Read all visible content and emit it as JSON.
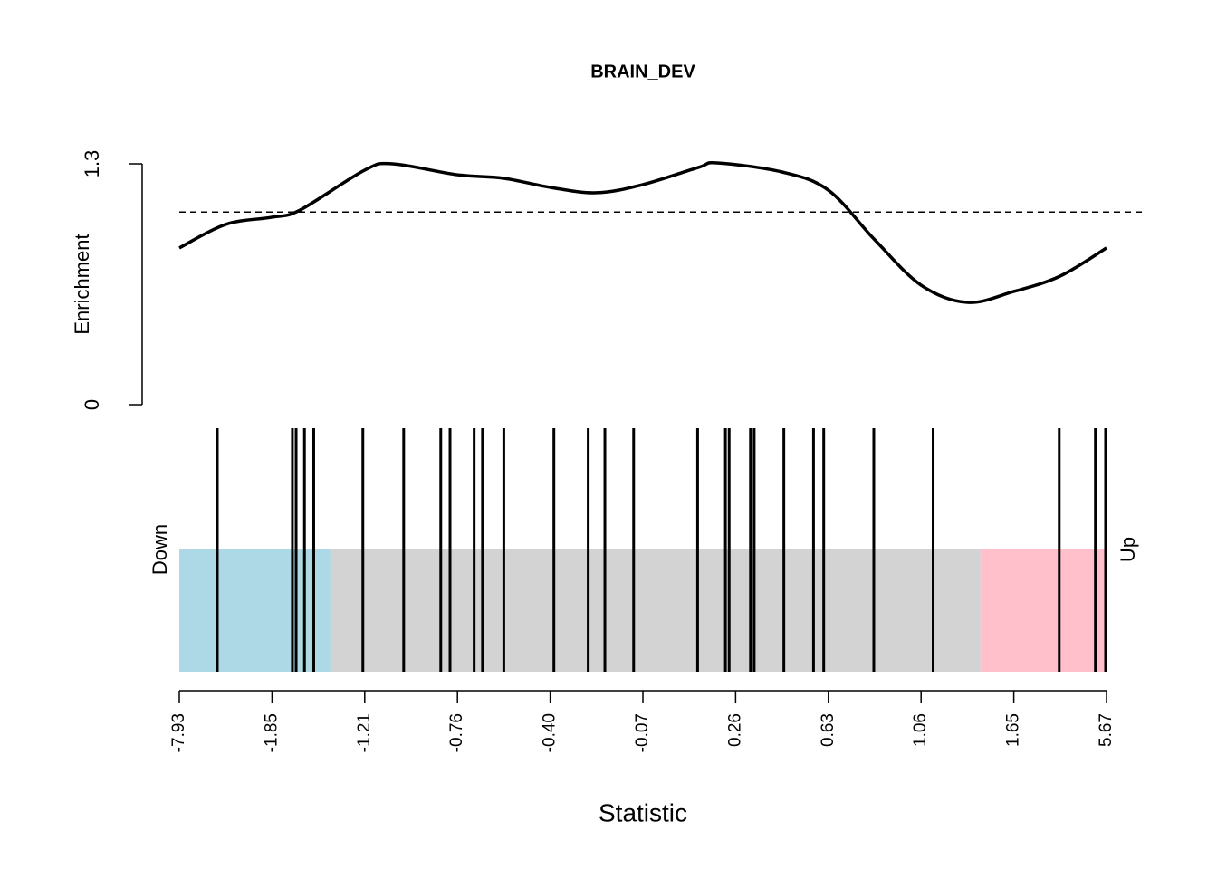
{
  "chart_data": {
    "type": "barcode",
    "title": "BRAIN_DEV",
    "ylabel": "Enrichment",
    "xlabel": "Statistic",
    "down_label": "Down",
    "up_label": "Up",
    "ylim": [
      0,
      1.3
    ],
    "yticks": [
      0,
      1.3
    ],
    "xlim": [
      0,
      1
    ],
    "xticks": [
      {
        "value": 0,
        "label": "-7.93"
      },
      {
        "value": 0.1,
        "label": "-1.85"
      },
      {
        "value": 0.2,
        "label": "-1.21"
      },
      {
        "value": 0.3,
        "label": "-0.76"
      },
      {
        "value": 0.4,
        "label": "-0.40"
      },
      {
        "value": 0.5,
        "label": "-0.07"
      },
      {
        "value": 0.6,
        "label": "0.26"
      },
      {
        "value": 0.7,
        "label": "0.63"
      },
      {
        "value": 0.8,
        "label": "1.06"
      },
      {
        "value": 0.9,
        "label": "1.65"
      },
      {
        "value": 1,
        "label": "5.67"
      }
    ],
    "reference_line": 1.04,
    "enrichment": {
      "color": "#000000",
      "x": [
        0,
        0.05,
        0.1,
        0.13,
        0.2,
        0.23,
        0.3,
        0.35,
        0.4,
        0.45,
        0.5,
        0.56,
        0.58,
        0.65,
        0.7,
        0.75,
        0.8,
        0.85,
        0.9,
        0.95,
        1
      ],
      "values": [
        0.846,
        0.973,
        1.012,
        1.05,
        1.266,
        1.3,
        1.241,
        1.222,
        1.173,
        1.144,
        1.188,
        1.281,
        1.305,
        1.256,
        1.158,
        0.89,
        0.645,
        0.552,
        0.611,
        0.694,
        0.846
      ]
    },
    "regions": [
      {
        "color": "#add8e6",
        "range": [
          0,
          0.163
        ]
      },
      {
        "color": "#d3d3d3",
        "range": [
          0.163,
          0.864
        ]
      },
      {
        "color": "#ffc0cb",
        "range": [
          0.864,
          1
        ]
      }
    ],
    "barcode": {
      "color": "#000000",
      "x": [
        0.041,
        0.122,
        0.126,
        0.135,
        0.145,
        0.198,
        0.242,
        0.282,
        0.292,
        0.318,
        0.327,
        0.35,
        0.404,
        0.441,
        0.459,
        0.49,
        0.559,
        0.589,
        0.593,
        0.616,
        0.62,
        0.652,
        0.684,
        0.695,
        0.749,
        0.813,
        0.949,
        0.988,
        0.999
      ]
    }
  }
}
